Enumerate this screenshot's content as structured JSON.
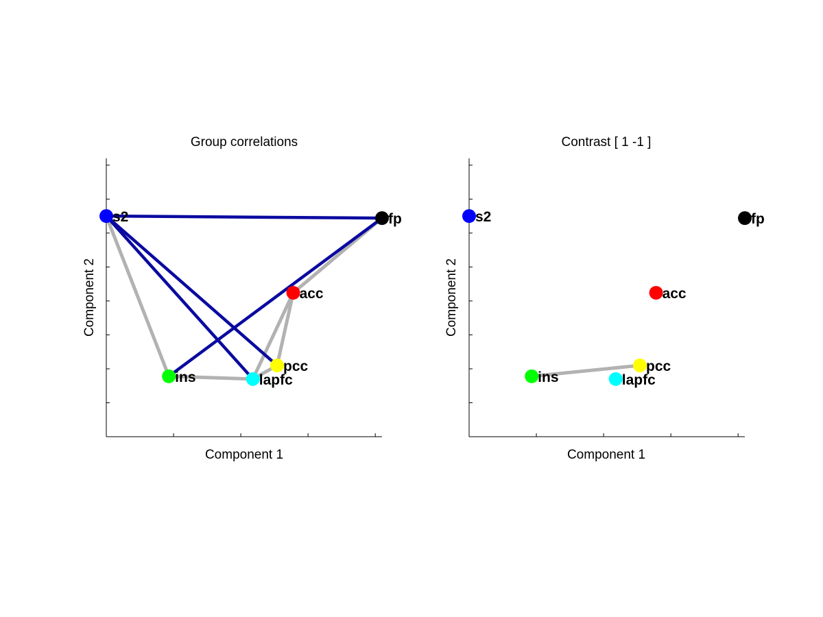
{
  "colors": {
    "background": "#ffffff",
    "positive_edge": "#0a0aa0",
    "other_edge": "#b2b2b2",
    "axis": "#000000"
  },
  "chart_data": [
    {
      "type": "scatter",
      "title": "Group correlations",
      "xlabel": "Component 1",
      "ylabel": "Component 2",
      "xlim": [
        0,
        4.1
      ],
      "ylim": [
        0,
        4.1
      ],
      "x_ticks": [
        0,
        1,
        2,
        3,
        4
      ],
      "y_ticks": [
        0,
        0.5,
        1,
        1.5,
        2,
        2.5,
        3,
        3.5,
        4
      ],
      "tick_labels_visible": false,
      "grid": false,
      "nodes": [
        {
          "name": "s2",
          "x": 0.0,
          "y": 3.25,
          "color": "#0000ff"
        },
        {
          "name": "fp",
          "x": 4.1,
          "y": 3.22,
          "color": "#000000"
        },
        {
          "name": "acc",
          "x": 2.78,
          "y": 2.12,
          "color": "#ff0000"
        },
        {
          "name": "pcc",
          "x": 2.54,
          "y": 1.05,
          "color": "#ffff00"
        },
        {
          "name": "ins",
          "x": 0.93,
          "y": 0.89,
          "color": "#00ff00"
        },
        {
          "name": "lapfc",
          "x": 2.18,
          "y": 0.85,
          "color": "#00ffff"
        }
      ],
      "edges": [
        {
          "from": "s2",
          "to": "ins",
          "kind": "gray"
        },
        {
          "from": "ins",
          "to": "lapfc",
          "kind": "gray"
        },
        {
          "from": "lapfc",
          "to": "acc",
          "kind": "gray"
        },
        {
          "from": "lapfc",
          "to": "pcc",
          "kind": "gray"
        },
        {
          "from": "pcc",
          "to": "acc",
          "kind": "gray"
        },
        {
          "from": "acc",
          "to": "fp",
          "kind": "gray"
        },
        {
          "from": "s2",
          "to": "fp",
          "kind": "blue"
        },
        {
          "from": "s2",
          "to": "lapfc",
          "kind": "blue"
        },
        {
          "from": "s2",
          "to": "pcc",
          "kind": "blue"
        },
        {
          "from": "ins",
          "to": "fp",
          "kind": "blue"
        }
      ]
    },
    {
      "type": "scatter",
      "title": "Contrast [ 1 -1 ]",
      "xlabel": "Component 1",
      "ylabel": "Component 2",
      "xlim": [
        0,
        4.1
      ],
      "ylim": [
        0,
        4.1
      ],
      "x_ticks": [
        0,
        1,
        2,
        3,
        4
      ],
      "y_ticks": [
        0,
        0.5,
        1,
        1.5,
        2,
        2.5,
        3,
        3.5,
        4
      ],
      "tick_labels_visible": false,
      "grid": false,
      "nodes": [
        {
          "name": "s2",
          "x": 0.0,
          "y": 3.25,
          "color": "#0000ff"
        },
        {
          "name": "fp",
          "x": 4.1,
          "y": 3.22,
          "color": "#000000"
        },
        {
          "name": "acc",
          "x": 2.78,
          "y": 2.12,
          "color": "#ff0000"
        },
        {
          "name": "pcc",
          "x": 2.54,
          "y": 1.05,
          "color": "#ffff00"
        },
        {
          "name": "ins",
          "x": 0.93,
          "y": 0.89,
          "color": "#00ff00"
        },
        {
          "name": "lapfc",
          "x": 2.18,
          "y": 0.85,
          "color": "#00ffff"
        }
      ],
      "edges": [
        {
          "from": "ins",
          "to": "pcc",
          "kind": "gray"
        }
      ]
    }
  ]
}
